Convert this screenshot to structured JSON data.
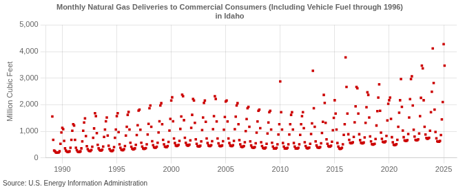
{
  "chart_data": {
    "type": "scatter",
    "title": "Monthly Natural Gas Deliveries to Commercial Consumers (Including Vehicle Fuel through 1996)\nin Idaho",
    "ylabel": "Million Cubic Feet",
    "source": "Source: U.S. Energy Information Administration",
    "color": "#cc0000",
    "marker": "square",
    "grid": true,
    "xlim": [
      1988.5,
      2026.2
    ],
    "ylim": [
      0,
      5000
    ],
    "xticks": [
      1990,
      1995,
      2000,
      2005,
      2010,
      2015,
      2020,
      2025
    ],
    "yticks": [
      0,
      {
        "value": 1000,
        "label": "1,000"
      },
      {
        "value": 2000,
        "label": "2,000"
      },
      {
        "value": 3000,
        "label": "3,000"
      },
      {
        "value": 4000,
        "label": "4,000"
      },
      {
        "value": 5000,
        "label": "5,000"
      }
    ],
    "x": [
      1989.083,
      1989.167,
      1989.25,
      1989.333,
      1989.417,
      1989.5,
      1989.583,
      1989.667,
      1989.75,
      1989.833,
      1989.917,
      1990,
      1990.083,
      1990.167,
      1990.25,
      1990.333,
      1990.417,
      1990.5,
      1990.583,
      1990.667,
      1990.75,
      1990.833,
      1990.917,
      1991,
      1991.083,
      1991.167,
      1991.25,
      1991.333,
      1991.417,
      1991.5,
      1991.583,
      1991.667,
      1991.75,
      1991.833,
      1991.917,
      1992,
      1992.083,
      1992.167,
      1992.25,
      1992.333,
      1992.417,
      1992.5,
      1992.583,
      1992.667,
      1992.75,
      1992.833,
      1992.917,
      1993,
      1993.083,
      1993.167,
      1993.25,
      1993.333,
      1993.417,
      1993.5,
      1993.583,
      1993.667,
      1993.75,
      1993.833,
      1993.917,
      1994,
      1994.083,
      1994.167,
      1994.25,
      1994.333,
      1994.417,
      1994.5,
      1994.583,
      1994.667,
      1994.75,
      1994.833,
      1994.917,
      1995,
      1995.083,
      1995.167,
      1995.25,
      1995.333,
      1995.417,
      1995.5,
      1995.583,
      1995.667,
      1995.75,
      1995.833,
      1995.917,
      1996,
      1996.083,
      1996.167,
      1996.25,
      1996.333,
      1996.417,
      1996.5,
      1996.583,
      1996.667,
      1996.75,
      1996.833,
      1996.917,
      1997,
      1997.083,
      1997.167,
      1997.25,
      1997.333,
      1997.417,
      1997.5,
      1997.583,
      1997.667,
      1997.75,
      1997.833,
      1997.917,
      1998,
      1998.083,
      1998.167,
      1998.25,
      1998.333,
      1998.417,
      1998.5,
      1998.583,
      1998.667,
      1998.75,
      1998.833,
      1998.917,
      1999,
      1999.083,
      1999.167,
      1999.25,
      1999.333,
      1999.417,
      1999.5,
      1999.583,
      1999.667,
      1999.75,
      1999.833,
      1999.917,
      2000,
      2000.083,
      2000.167,
      2000.25,
      2000.333,
      2000.417,
      2000.5,
      2000.583,
      2000.667,
      2000.75,
      2000.833,
      2000.917,
      2001,
      2001.083,
      2001.167,
      2001.25,
      2001.333,
      2001.417,
      2001.5,
      2001.583,
      2001.667,
      2001.75,
      2001.833,
      2001.917,
      2002,
      2002.083,
      2002.167,
      2002.25,
      2002.333,
      2002.417,
      2002.5,
      2002.583,
      2002.667,
      2002.75,
      2002.833,
      2002.917,
      2003,
      2003.083,
      2003.167,
      2003.25,
      2003.333,
      2003.417,
      2003.5,
      2003.583,
      2003.667,
      2003.75,
      2003.833,
      2003.917,
      2004,
      2004.083,
      2004.167,
      2004.25,
      2004.333,
      2004.417,
      2004.5,
      2004.583,
      2004.667,
      2004.75,
      2004.833,
      2004.917,
      2005,
      2005.083,
      2005.167,
      2005.25,
      2005.333,
      2005.417,
      2005.5,
      2005.583,
      2005.667,
      2005.75,
      2005.833,
      2005.917,
      2006,
      2006.083,
      2006.167,
      2006.25,
      2006.333,
      2006.417,
      2006.5,
      2006.583,
      2006.667,
      2006.75,
      2006.833,
      2006.917,
      2007,
      2007.083,
      2007.167,
      2007.25,
      2007.333,
      2007.417,
      2007.5,
      2007.583,
      2007.667,
      2007.75,
      2007.833,
      2007.917,
      2008,
      2008.083,
      2008.167,
      2008.25,
      2008.333,
      2008.417,
      2008.5,
      2008.583,
      2008.667,
      2008.75,
      2008.833,
      2008.917,
      2009,
      2009.083,
      2009.167,
      2009.25,
      2009.333,
      2009.417,
      2009.5,
      2009.583,
      2009.667,
      2009.75,
      2009.833,
      2009.917,
      2010,
      2010.083,
      2010.167,
      2010.25,
      2010.333,
      2010.417,
      2010.5,
      2010.583,
      2010.667,
      2010.75,
      2010.833,
      2010.917,
      2011,
      2011.083,
      2011.167,
      2011.25,
      2011.333,
      2011.417,
      2011.5,
      2011.583,
      2011.667,
      2011.75,
      2011.833,
      2011.917,
      2012,
      2012.083,
      2012.167,
      2012.25,
      2012.333,
      2012.417,
      2012.5,
      2012.583,
      2012.667,
      2012.75,
      2012.833,
      2012.917,
      2013,
      2013.083,
      2013.167,
      2013.25,
      2013.333,
      2013.417,
      2013.5,
      2013.583,
      2013.667,
      2013.75,
      2013.833,
      2013.917,
      2014,
      2014.083,
      2014.167,
      2014.25,
      2014.333,
      2014.417,
      2014.5,
      2014.583,
      2014.667,
      2014.75,
      2014.833,
      2014.917,
      2015,
      2015.083,
      2015.167,
      2015.25,
      2015.333,
      2015.417,
      2015.5,
      2015.583,
      2015.667,
      2015.75,
      2015.833,
      2015.917,
      2016,
      2016.083,
      2016.167,
      2016.25,
      2016.333,
      2016.417,
      2016.5,
      2016.583,
      2016.667,
      2016.75,
      2016.833,
      2016.917,
      2017,
      2017.083,
      2017.167,
      2017.25,
      2017.333,
      2017.417,
      2017.5,
      2017.583,
      2017.667,
      2017.75,
      2017.833,
      2017.917,
      2018,
      2018.083,
      2018.167,
      2018.25,
      2018.333,
      2018.417,
      2018.5,
      2018.583,
      2018.667,
      2018.75,
      2018.833,
      2018.917,
      2019,
      2019.083,
      2019.167,
      2019.25,
      2019.333,
      2019.417,
      2019.5,
      2019.583,
      2019.667,
      2019.75,
      2019.833,
      2019.917,
      2020,
      2020.083,
      2020.167,
      2020.25,
      2020.333,
      2020.417,
      2020.5,
      2020.583,
      2020.667,
      2020.75,
      2020.833,
      2020.917,
      2021,
      2021.083,
      2021.167,
      2021.25,
      2021.333,
      2021.417,
      2021.5,
      2021.583,
      2021.667,
      2021.75,
      2021.833,
      2021.917,
      2022,
      2022.083,
      2022.167,
      2022.25,
      2022.333,
      2022.417,
      2022.5,
      2022.583,
      2022.667,
      2022.75,
      2022.833,
      2022.917,
      2023,
      2023.083,
      2023.167,
      2023.25,
      2023.333,
      2023.417,
      2023.5,
      2023.583,
      2023.667,
      2023.75,
      2023.833,
      2023.917,
      2024,
      2024.083,
      2024.167,
      2024.25,
      2024.333,
      2024.417,
      2024.5,
      2024.583,
      2024.667,
      2024.75,
      2024.833,
      2024.917,
      2025,
      2025.083
    ],
    "values": [
      1560,
      680,
      280,
      250,
      200,
      200,
      200,
      210,
      250,
      530,
      960,
      1130,
      1080,
      640,
      360,
      280,
      240,
      220,
      230,
      250,
      380,
      680,
      1020,
      1270,
      1220,
      680,
      380,
      290,
      240,
      220,
      220,
      250,
      360,
      620,
      1020,
      1330,
      1490,
      820,
      440,
      330,
      280,
      260,
      260,
      300,
      420,
      760,
      1110,
      1680,
      1570,
      930,
      490,
      360,
      300,
      280,
      280,
      310,
      430,
      790,
      1070,
      1380,
      1520,
      840,
      460,
      340,
      280,
      260,
      260,
      290,
      410,
      760,
      1070,
      1570,
      1680,
      970,
      510,
      380,
      310,
      290,
      290,
      330,
      450,
      840,
      1170,
      1620,
      1730,
      1070,
      570,
      420,
      350,
      320,
      330,
      360,
      490,
      860,
      1230,
      1780,
      1820,
      1060,
      570,
      430,
      360,
      340,
      350,
      370,
      510,
      880,
      1280,
      1870,
      1970,
      1170,
      630,
      480,
      400,
      380,
      390,
      420,
      570,
      960,
      1380,
      1970,
      2060,
      1270,
      680,
      510,
      430,
      410,
      410,
      450,
      600,
      1030,
      1470,
      2160,
      2280,
      1380,
      730,
      560,
      470,
      450,
      460,
      490,
      640,
      1090,
      1560,
      2380,
      2320,
      1420,
      760,
      570,
      490,
      460,
      470,
      500,
      660,
      1130,
      1620,
      2220,
      2160,
      1320,
      700,
      530,
      450,
      430,
      430,
      460,
      620,
      1050,
      1520,
      2070,
      2160,
      1360,
      730,
      560,
      470,
      450,
      450,
      480,
      630,
      1080,
      1570,
      2320,
      2220,
      1370,
      730,
      550,
      460,
      440,
      450,
      470,
      630,
      1060,
      1540,
      2120,
      2160,
      1370,
      730,
      560,
      470,
      450,
      450,
      480,
      640,
      1080,
      1550,
      1970,
      2060,
      1270,
      670,
      510,
      430,
      410,
      420,
      450,
      590,
      1010,
      1460,
      1870,
      1920,
      1170,
      620,
      470,
      400,
      380,
      380,
      410,
      550,
      950,
      1370,
      1770,
      1820,
      1120,
      590,
      450,
      380,
      360,
      360,
      390,
      530,
      920,
      1330,
      1720,
      1770,
      1070,
      570,
      430,
      360,
      350,
      350,
      380,
      510,
      880,
      1270,
      2880,
      1720,
      1070,
      560,
      430,
      360,
      350,
      350,
      380,
      510,
      880,
      1270,
      1620,
      1720,
      1070,
      560,
      430,
      360,
      350,
      350,
      380,
      510,
      870,
      1270,
      1570,
      1720,
      1120,
      590,
      450,
      380,
      360,
      370,
      390,
      530,
      900,
      1300,
      3280,
      1870,
      1170,
      620,
      470,
      400,
      380,
      380,
      410,
      550,
      940,
      1360,
      2370,
      2070,
      1320,
      700,
      530,
      450,
      420,
      430,
      460,
      610,
      1040,
      1510,
      2170,
      1670,
      1070,
      560,
      430,
      360,
      340,
      350,
      380,
      510,
      870,
      1270,
      3780,
      2670,
      1670,
      890,
      680,
      570,
      550,
      560,
      590,
      790,
      1340,
      1940,
      2670,
      2620,
      1670,
      890,
      670,
      570,
      550,
      550,
      580,
      770,
      1320,
      1910,
      2470,
      2370,
      1520,
      810,
      620,
      520,
      500,
      510,
      530,
      710,
      1220,
      1760,
      2270,
      2770,
      1770,
      950,
      720,
      610,
      590,
      590,
      620,
      830,
      1410,
      2040,
      2170,
      2270,
      1470,
      780,
      590,
      500,
      480,
      490,
      520,
      680,
      1170,
      1700,
      2170,
      2970,
      1920,
      1030,
      780,
      660,
      640,
      640,
      670,
      900,
      1520,
      2210,
      2970,
      3070,
      1970,
      1060,
      800,
      680,
      660,
      670,
      700,
      920,
      1570,
      2260,
      3470,
      3370,
      2170,
      1170,
      880,
      750,
      720,
      730,
      760,
      1020,
      1720,
      2490,
      4120,
      2820,
      1820,
      980,
      740,
      630,
      610,
      610,
      640,
      860,
      1450,
      2100,
      4280,
      3470
    ]
  }
}
